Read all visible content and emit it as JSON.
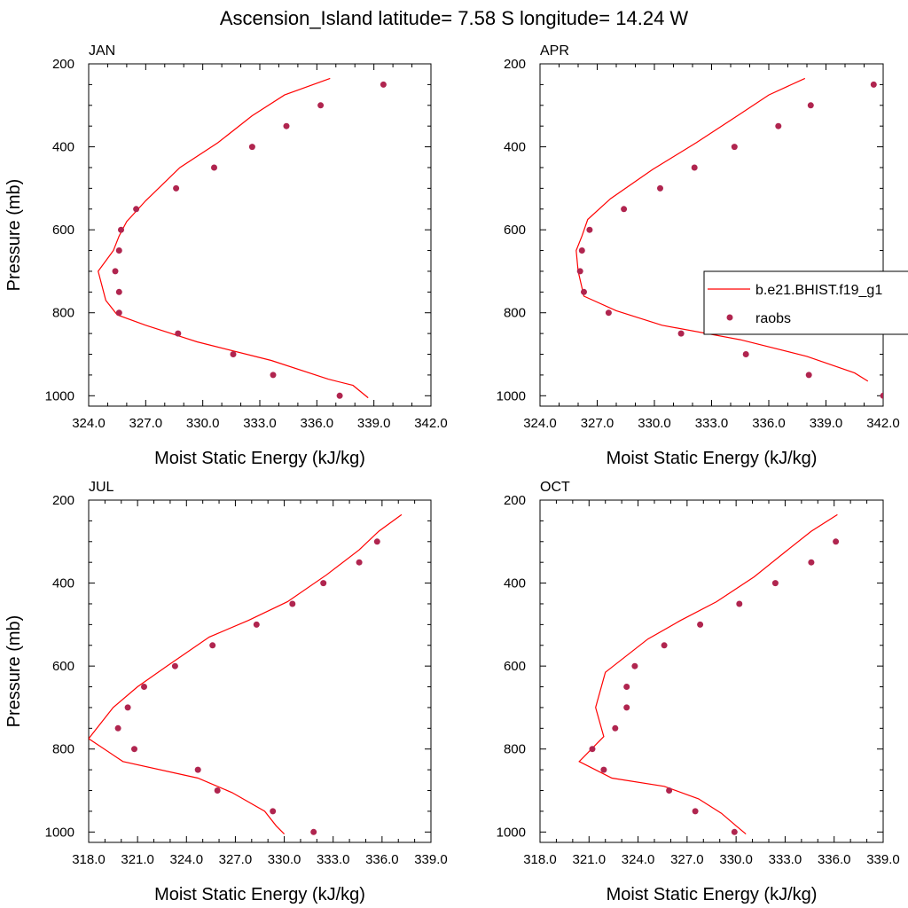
{
  "title": "Ascension_Island  latitude= 7.58 S longitude= 14.24 W",
  "legend": {
    "placement": "right",
    "entries": [
      {
        "label": "b.e21.BHIST.f19_g1",
        "marker": "line",
        "color": "#ff0000"
      },
      {
        "label": "raobs",
        "marker": "dot",
        "color": "#b0254f"
      }
    ]
  },
  "chart_data": [
    {
      "type": "scatter",
      "panel": "JAN",
      "xlabel": "Moist Static Energy (kJ/kg)",
      "ylabel": "Pressure (mb)",
      "xlim": [
        324,
        342
      ],
      "ylim": [
        1025,
        200
      ],
      "xticks": [
        "324.0",
        "327.0",
        "330.0",
        "333.0",
        "336.0",
        "339.0",
        "342.0"
      ],
      "yticks": [
        "200",
        "400",
        "600",
        "800",
        "1000"
      ],
      "series": [
        {
          "name": "b.e21.BHIST.f19_g1",
          "style": "line",
          "color": "#ff0000",
          "x": [
            336.7,
            334.3,
            332.6,
            330.8,
            328.8,
            327.0,
            326.0,
            325.6,
            325.3,
            324.5,
            324.9,
            325.5,
            327.0,
            329.7,
            333.6,
            336.6,
            337.9,
            338.7
          ],
          "y": [
            235,
            275,
            325,
            390,
            450,
            530,
            580,
            615,
            650,
            700,
            770,
            805,
            830,
            870,
            915,
            960,
            975,
            1005
          ]
        },
        {
          "name": "raobs",
          "style": "markers",
          "color": "#b0254f",
          "x": [
            339.5,
            336.2,
            334.4,
            332.6,
            330.6,
            328.6,
            326.5,
            325.7,
            325.6,
            325.4,
            325.6,
            325.6,
            328.7,
            331.6,
            333.7,
            337.2
          ],
          "y": [
            250,
            300,
            350,
            400,
            450,
            500,
            550,
            600,
            650,
            700,
            750,
            800,
            850,
            900,
            950,
            1000
          ]
        }
      ]
    },
    {
      "type": "scatter",
      "panel": "APR",
      "xlabel": "Moist Static Energy (kJ/kg)",
      "ylabel": "",
      "xlim": [
        324,
        342
      ],
      "ylim": [
        1025,
        200
      ],
      "xticks": [
        "324.0",
        "327.0",
        "330.0",
        "333.0",
        "336.0",
        "339.0",
        "342.0"
      ],
      "yticks": [
        "200",
        "400",
        "600",
        "800",
        "1000"
      ],
      "series": [
        {
          "name": "b.e21.BHIST.f19_g1",
          "style": "line",
          "color": "#ff0000",
          "x": [
            337.9,
            336.0,
            334.2,
            332.2,
            329.9,
            327.7,
            326.5,
            326.2,
            325.9,
            326.0,
            326.3,
            328.0,
            330.4,
            334.5,
            338.0,
            340.5,
            341.2
          ],
          "y": [
            235,
            275,
            330,
            390,
            455,
            525,
            575,
            615,
            650,
            700,
            760,
            795,
            830,
            865,
            905,
            945,
            965
          ]
        },
        {
          "name": "raobs",
          "style": "markers",
          "color": "#b0254f",
          "x": [
            341.5,
            338.2,
            336.5,
            334.2,
            332.1,
            330.3,
            328.4,
            326.6,
            326.2,
            326.1,
            326.3,
            327.6,
            331.4,
            334.8,
            338.1,
            342.0
          ],
          "y": [
            250,
            300,
            350,
            400,
            450,
            500,
            550,
            600,
            650,
            700,
            750,
            800,
            850,
            900,
            950,
            1000
          ]
        }
      ]
    },
    {
      "type": "scatter",
      "panel": "JUL",
      "xlabel": "Moist Static Energy (kJ/kg)",
      "ylabel": "Pressure (mb)",
      "xlim": [
        318,
        339
      ],
      "ylim": [
        1025,
        200
      ],
      "xticks": [
        "318.0",
        "321.0",
        "324.0",
        "327.0",
        "330.0",
        "333.0",
        "336.0",
        "339.0"
      ],
      "yticks": [
        "200",
        "400",
        "600",
        "800",
        "1000"
      ],
      "series": [
        {
          "name": "b.e21.BHIST.f19_g1",
          "style": "line",
          "color": "#ff0000",
          "x": [
            337.2,
            335.8,
            334.6,
            332.6,
            330.2,
            327.8,
            325.4,
            322.8,
            321.0,
            319.5,
            318.0,
            320.1,
            324.7,
            326.8,
            328.8,
            329.5,
            330.0
          ],
          "y": [
            235,
            275,
            320,
            380,
            445,
            490,
            530,
            600,
            650,
            700,
            775,
            830,
            870,
            905,
            950,
            985,
            1005
          ]
        },
        {
          "name": "raobs",
          "style": "markers",
          "color": "#b0254f",
          "x": [
            335.7,
            334.6,
            332.4,
            330.5,
            328.3,
            325.6,
            323.3,
            321.4,
            320.4,
            319.8,
            320.8,
            324.7,
            325.9,
            329.3,
            331.8
          ],
          "y": [
            300,
            350,
            400,
            450,
            500,
            550,
            600,
            650,
            700,
            750,
            800,
            850,
            900,
            950,
            1000
          ]
        }
      ]
    },
    {
      "type": "scatter",
      "panel": "OCT",
      "xlabel": "Moist Static Energy (kJ/kg)",
      "ylabel": "",
      "xlim": [
        318,
        339
      ],
      "ylim": [
        1025,
        200
      ],
      "xticks": [
        "318.0",
        "321.0",
        "324.0",
        "327.0",
        "330.0",
        "333.0",
        "336.0",
        "339.0"
      ],
      "yticks": [
        "200",
        "400",
        "600",
        "800",
        "1000"
      ],
      "series": [
        {
          "name": "b.e21.BHIST.f19_g1",
          "style": "line",
          "color": "#ff0000",
          "x": [
            336.2,
            334.6,
            333.0,
            331.1,
            328.8,
            326.6,
            324.6,
            322.0,
            321.4,
            321.9,
            320.4,
            322.4,
            325.6,
            327.7,
            329.1,
            330.0,
            330.6
          ],
          "y": [
            235,
            275,
            325,
            385,
            445,
            490,
            535,
            615,
            700,
            770,
            830,
            870,
            890,
            920,
            955,
            985,
            1005
          ]
        },
        {
          "name": "raobs",
          "style": "markers",
          "color": "#b0254f",
          "x": [
            336.1,
            334.6,
            332.4,
            330.2,
            327.8,
            325.6,
            323.8,
            323.3,
            323.3,
            322.6,
            321.2,
            321.9,
            325.9,
            327.5,
            329.9
          ],
          "y": [
            300,
            350,
            400,
            450,
            500,
            550,
            600,
            650,
            700,
            750,
            800,
            850,
            900,
            950,
            1000
          ]
        }
      ]
    }
  ]
}
